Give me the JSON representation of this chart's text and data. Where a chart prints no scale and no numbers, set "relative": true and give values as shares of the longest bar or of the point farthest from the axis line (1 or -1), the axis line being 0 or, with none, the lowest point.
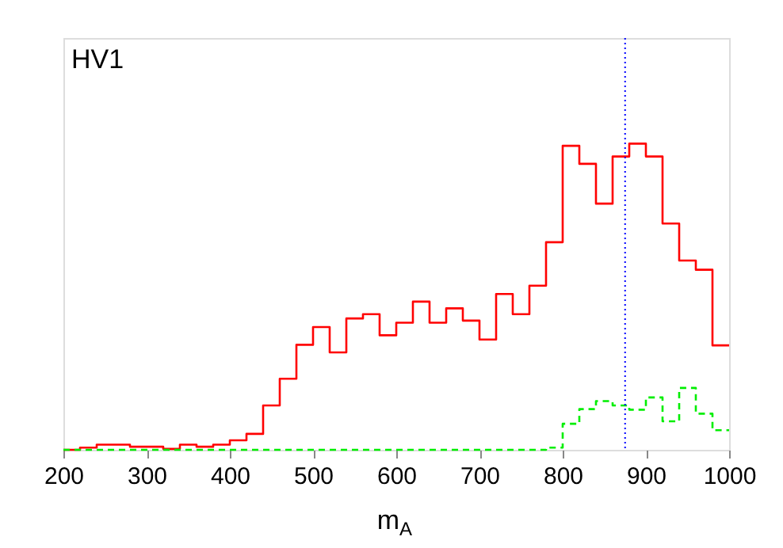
{
  "chart_data": {
    "type": "step",
    "relative": true,
    "xlabel": "m$_{A}$",
    "annotations": [
      "HV1"
    ],
    "x": [
      200,
      220,
      240,
      260,
      280,
      300,
      320,
      340,
      360,
      380,
      400,
      420,
      440,
      460,
      480,
      500,
      520,
      540,
      560,
      580,
      600,
      620,
      640,
      660,
      680,
      700,
      720,
      740,
      760,
      780,
      800,
      820,
      840,
      860,
      880,
      900,
      920,
      940,
      960,
      980,
      1000
    ],
    "series": [
      {
        "color": "#ff0000",
        "line_style": "solid",
        "values": [
          0,
          0.007,
          0.017,
          0.017,
          0.01,
          0.01,
          0.003,
          0.017,
          0.01,
          0.017,
          0.031,
          0.052,
          0.145,
          0.232,
          0.343,
          0.401,
          0.318,
          0.429,
          0.443,
          0.374,
          0.415,
          0.484,
          0.415,
          0.462,
          0.422,
          0.36,
          0.509,
          0.443,
          0.536,
          0.678,
          0.993,
          0.934,
          0.804,
          0.958,
          1,
          0.958,
          0.739,
          0.618,
          0.588,
          0.341,
          0.341
        ]
      },
      {
        "color": "#00ee00",
        "line_style": "dashed",
        "values": [
          0,
          0,
          0,
          0,
          0,
          0,
          0,
          0,
          0,
          0,
          0,
          0,
          0,
          0,
          0,
          0,
          0,
          0,
          0,
          0,
          0,
          0,
          0,
          0,
          0,
          0,
          0,
          0,
          0,
          0.007,
          0.085,
          0.133,
          0.159,
          0.145,
          0.131,
          0.171,
          0.093,
          0.202,
          0.118,
          0.064,
          0.064
        ]
      }
    ],
    "xlim": [
      200,
      1000
    ],
    "xticks": [
      200,
      300,
      400,
      500,
      600,
      700,
      800,
      900,
      1000
    ],
    "ref_lines": [
      {
        "axis": "x",
        "value": 875,
        "color": "#0000ff",
        "line_style": "dotted"
      }
    ],
    "tick_labels": "x",
    "grid": false
  }
}
